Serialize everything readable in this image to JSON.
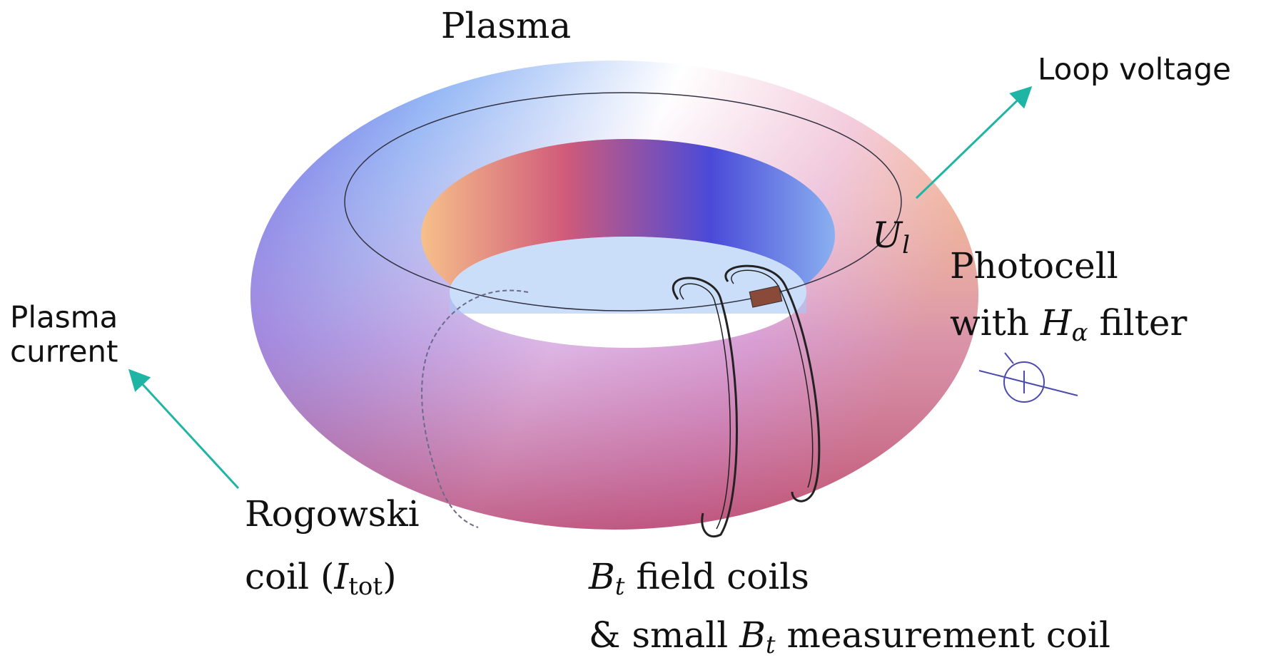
{
  "title": "Plasma",
  "annotations": {
    "loop_voltage": "Loop voltage",
    "plasma_current": [
      "Plasma",
      "current"
    ]
  },
  "labels": {
    "voltage_symbol": {
      "main": "U",
      "sub": "l"
    },
    "photocell": {
      "line1": "Photocell",
      "line2": [
        "with ",
        "H",
        "α",
        " filter"
      ]
    },
    "rogowski": {
      "line1": "Rogowski",
      "line2": [
        "coil (",
        "I",
        "tot",
        ")"
      ]
    },
    "field_coils": {
      "line1": [
        "B",
        "t",
        " field coils"
      ],
      "line2": [
        "& small ",
        "B",
        "t",
        " measurement coil"
      ]
    }
  }
}
